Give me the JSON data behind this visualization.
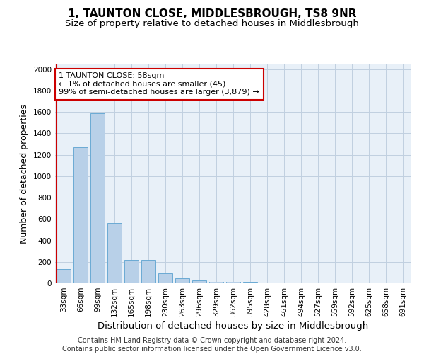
{
  "title": "1, TAUNTON CLOSE, MIDDLESBROUGH, TS8 9NR",
  "subtitle": "Size of property relative to detached houses in Middlesbrough",
  "xlabel": "Distribution of detached houses by size in Middlesbrough",
  "ylabel": "Number of detached properties",
  "footer_line1": "Contains HM Land Registry data © Crown copyright and database right 2024.",
  "footer_line2": "Contains public sector information licensed under the Open Government Licence v3.0.",
  "categories": [
    "33sqm",
    "66sqm",
    "99sqm",
    "132sqm",
    "165sqm",
    "198sqm",
    "230sqm",
    "263sqm",
    "296sqm",
    "329sqm",
    "362sqm",
    "395sqm",
    "428sqm",
    "461sqm",
    "494sqm",
    "527sqm",
    "559sqm",
    "592sqm",
    "625sqm",
    "658sqm",
    "691sqm"
  ],
  "values": [
    130,
    1270,
    1590,
    560,
    215,
    215,
    95,
    45,
    25,
    15,
    10,
    5,
    0,
    0,
    0,
    0,
    0,
    0,
    0,
    0,
    0
  ],
  "bar_color": "#b8d0e8",
  "bar_edge_color": "#6aaad4",
  "grid_color": "#c0cfe0",
  "background_color": "#e8f0f8",
  "annotation_line1": "1 TAUNTON CLOSE: 58sqm",
  "annotation_line2": "← 1% of detached houses are smaller (45)",
  "annotation_line3": "99% of semi-detached houses are larger (3,879) →",
  "vline_color": "#cc0000",
  "annotation_box_edgecolor": "#cc0000",
  "ylim": [
    0,
    2050
  ],
  "yticks": [
    0,
    200,
    400,
    600,
    800,
    1000,
    1200,
    1400,
    1600,
    1800,
    2000
  ],
  "title_fontsize": 11,
  "subtitle_fontsize": 9.5,
  "axis_label_fontsize": 9,
  "tick_fontsize": 7.5,
  "footer_fontsize": 7,
  "annotation_fontsize": 8
}
